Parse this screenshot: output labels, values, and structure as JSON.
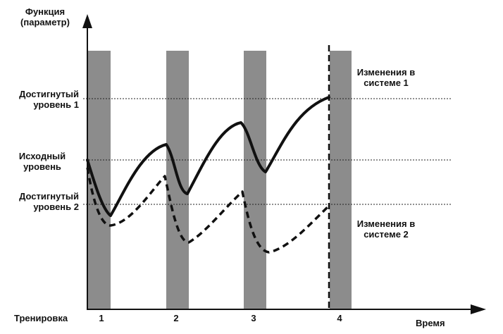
{
  "y_axis_title": [
    "Функция",
    "(параметр)"
  ],
  "x_axis_title": "Время",
  "x_row_label": "Тренировка",
  "levels": {
    "achieved_1": [
      "Достигнутый",
      "уровень 1"
    ],
    "initial": [
      "Исходный",
      "уровень"
    ],
    "achieved_2": [
      "Достигнутый",
      "уровень 2"
    ]
  },
  "trainings": [
    "1",
    "2",
    "3",
    "4"
  ],
  "annotations": {
    "system_1": [
      "Изменения в",
      "системе 1"
    ],
    "system_2": [
      "Изменения в",
      "системе 2"
    ]
  },
  "colors": {
    "bar": "#8c8c8c",
    "line": "#111111"
  }
}
